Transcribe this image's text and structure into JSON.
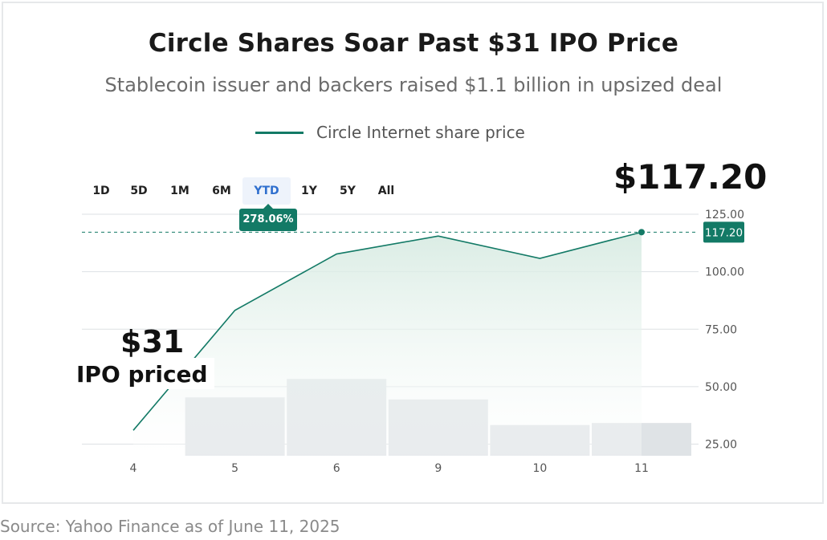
{
  "title": "Circle Shares Soar Past $31 IPO Price",
  "subtitle": "Stablecoin issuer and backers raised $1.1 billion in upsized deal",
  "legend": {
    "label": "Circle Internet share price",
    "color": "#137a66"
  },
  "range_tabs": [
    "1D",
    "5D",
    "1M",
    "6M",
    "YTD",
    "1Y",
    "5Y",
    "All"
  ],
  "active_tab": "YTD",
  "change_badge": "278.06%",
  "current_price_label": "$117.20",
  "last_value_label": "117.20",
  "ipo": {
    "price": "$31",
    "label": "IPO priced"
  },
  "source": "Source: Yahoo Finance as of June 11, 2025",
  "colors": {
    "line": "#137a66",
    "area": "#e2f0ea",
    "volume": "#dfe3e6",
    "grid": "#dde1e4"
  },
  "chart_data": {
    "type": "line",
    "title": "Circle Shares Soar Past $31 IPO Price",
    "categories": [
      "4",
      "5",
      "6",
      "9",
      "10",
      "11"
    ],
    "series": [
      {
        "name": "Circle Internet share price",
        "values": [
          31.0,
          83.2,
          107.7,
          115.5,
          105.8,
          117.2
        ]
      }
    ],
    "volume_relative": [
      null,
      0.57,
      0.75,
      0.55,
      0.3,
      0.32
    ],
    "ylim": [
      20,
      125
    ],
    "yticks": [
      "125.00",
      "100.00",
      "75.00",
      "50.00",
      "25.00"
    ],
    "ytick_values": [
      125,
      100,
      75,
      50,
      25
    ],
    "reference_line": 117.2,
    "grid": true,
    "legend_position": "top"
  }
}
